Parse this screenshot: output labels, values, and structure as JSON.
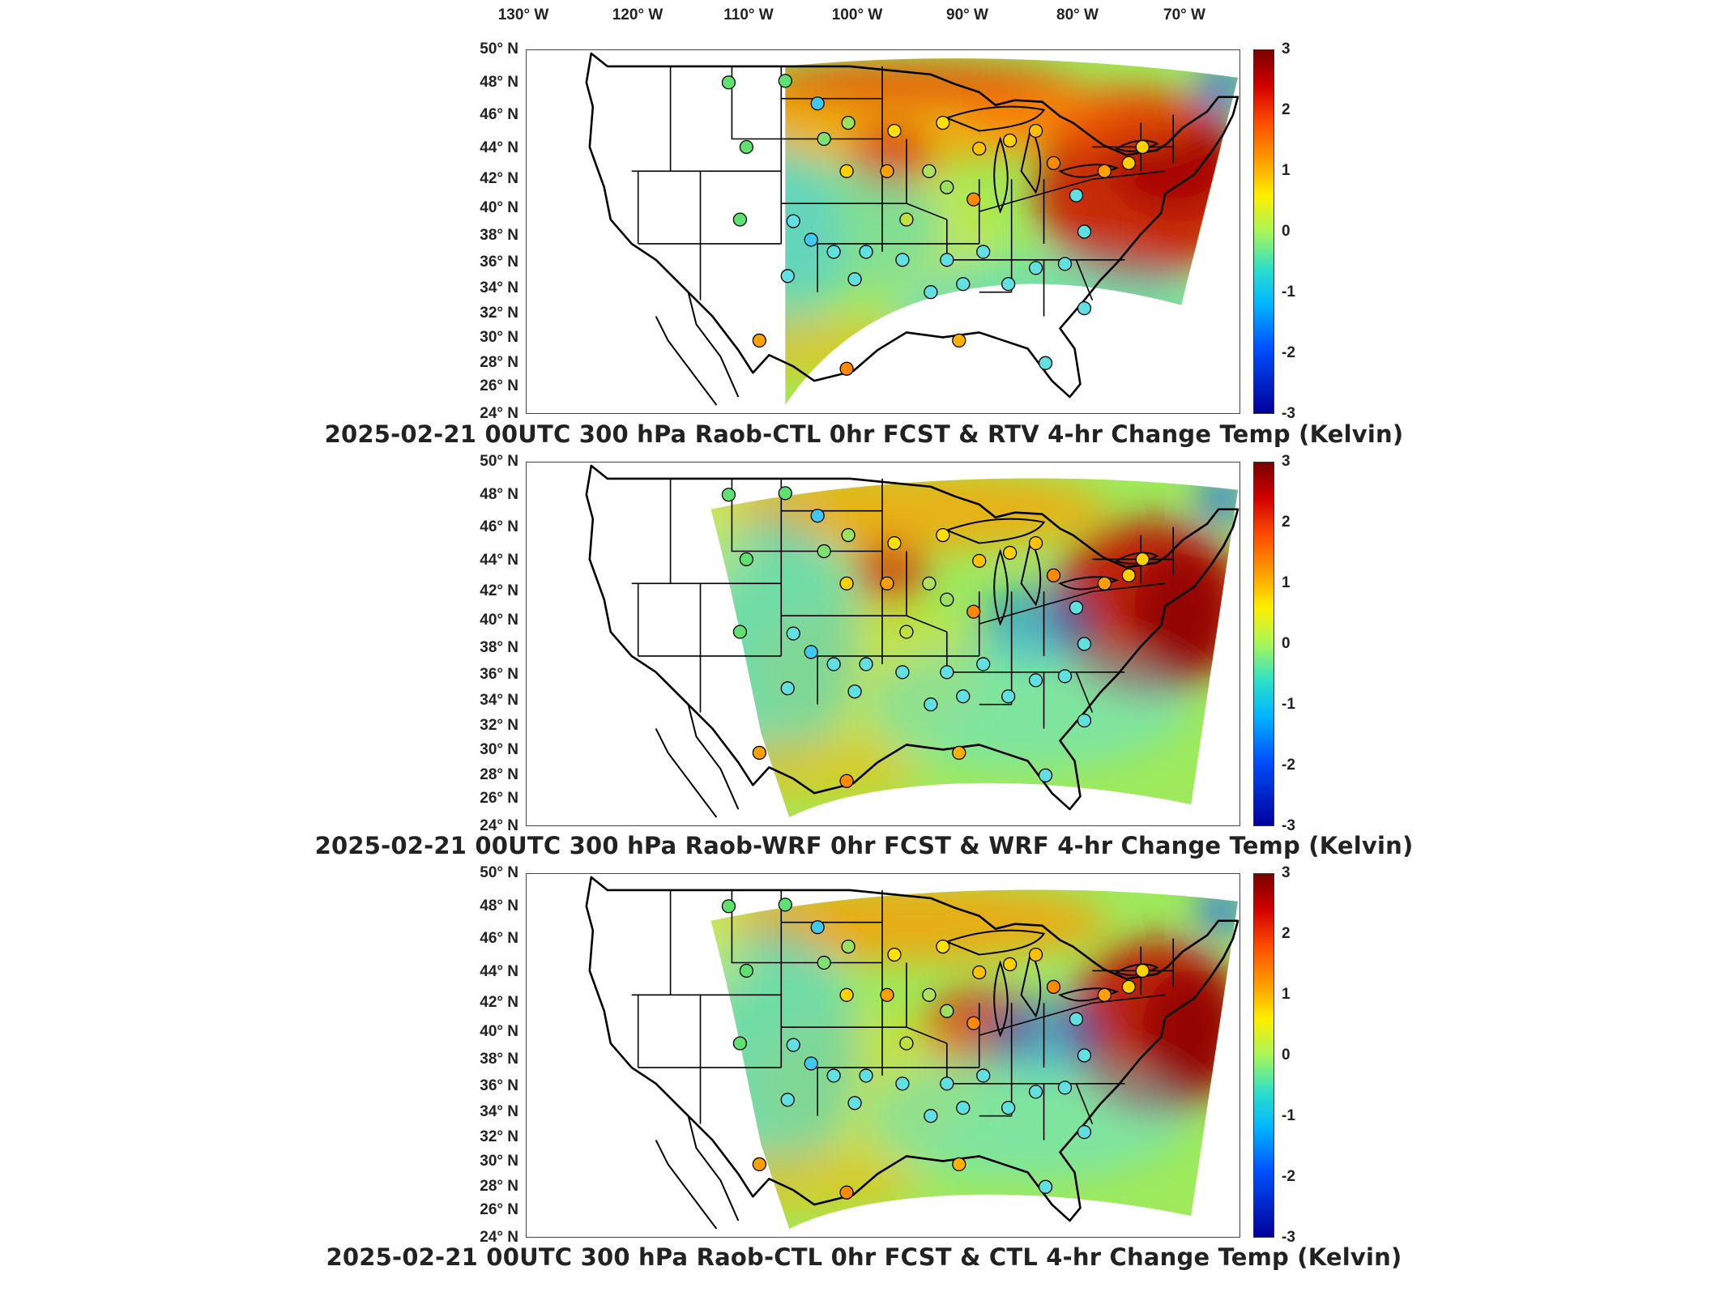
{
  "lon_labels": [
    "130° W",
    "120° W",
    "110° W",
    "100° W",
    "90° W",
    "80° W",
    "70° W"
  ],
  "lat_labels": [
    "50° N",
    "48° N",
    "46° N",
    "44° N",
    "42° N",
    "40° N",
    "38° N",
    "36° N",
    "34° N",
    "32° N",
    "30° N",
    "28° N",
    "26° N",
    "24° N"
  ],
  "colorbar": {
    "ticks": [
      "3",
      "2",
      "1",
      "0",
      "-1",
      "-2",
      "-3"
    ],
    "units": "Kelvin",
    "min": -3,
    "max": 3
  },
  "panels": [
    {
      "title": "2025-02-21 00UTC 300 hPa Raob-CTL 0hr FCST & RTV 4-hr Change Temp (Kelvin)"
    },
    {
      "title": "2025-02-21 00UTC 300 hPa Raob-WRF 0hr FCST & WRF 4-hr Change Temp (Kelvin)"
    },
    {
      "title": "2025-02-21 00UTC 300 hPa Raob-CTL 0hr FCST & CTL 4-hr Change Temp (Kelvin)"
    }
  ],
  "colors": {
    "hot": "#c81e00",
    "warm": "#ffb400",
    "neutral": "#a8f060",
    "cool": "#30d8ee",
    "cold": "#0060ff"
  }
}
